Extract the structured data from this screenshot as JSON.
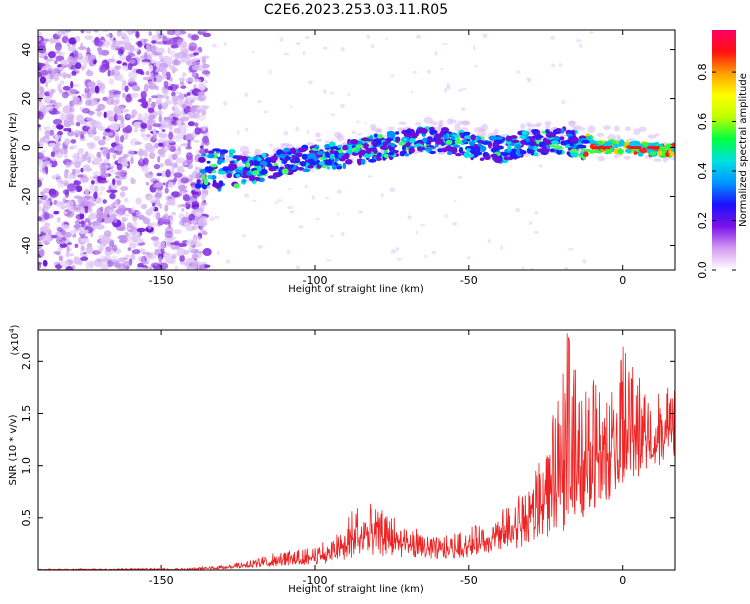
{
  "title": "C2E6.2023.253.03.11.R05",
  "chart_data": [
    {
      "type": "heatmap",
      "xlabel": "Height of straight line (km)",
      "ylabel": "Frequency (Hz)",
      "xlim": [
        -190,
        17
      ],
      "ylim": [
        -50,
        48
      ],
      "xticks": [
        -150,
        -100,
        -50,
        0
      ],
      "yticks": [
        -40,
        -20,
        0,
        20,
        40
      ],
      "colorbar": {
        "label": "Normalized spectral amplitude",
        "range": [
          0,
          0.97
        ],
        "ticks": [
          "0.0",
          "0.2",
          "0.4",
          "0.6",
          "0.8"
        ],
        "colors": [
          "#ffffff",
          "#d59bf2",
          "#7a12e8",
          "#1a10ff",
          "#0096ff",
          "#00e0e0",
          "#00ff40",
          "#bfff00",
          "#ffff00",
          "#ffa000",
          "#ff1010",
          "#ff0066"
        ]
      },
      "ridge": {
        "x": [
          -137,
          -130,
          -120,
          -110,
          -100,
          -90,
          -80,
          -70,
          -60,
          -50,
          -40,
          -30,
          -20,
          -10,
          0,
          10,
          17
        ],
        "frequency_hz": [
          -8,
          -9,
          -9,
          -6,
          -4,
          -3,
          0,
          2,
          3,
          1,
          -1,
          2,
          3,
          0,
          0,
          -1,
          -1
        ]
      }
    },
    {
      "type": "line",
      "xlabel": "Height of straight line (km)",
      "ylabel": "SNR (10 * v/v)",
      "y_multiplier": "(x10",
      "y_multiplier_exp": "4",
      "y_multiplier_close": ")",
      "xlim": [
        -190,
        17
      ],
      "ylim": [
        0,
        2.3
      ],
      "xticks": [
        -150,
        -100,
        -50,
        0
      ],
      "yticks": [
        0.5,
        1.0,
        1.5,
        2.0
      ],
      "color": "#ee2222",
      "envelope": {
        "x": [
          -190,
          -140,
          -130,
          -125,
          -120,
          -110,
          -100,
          -95,
          -90,
          -87,
          -80,
          -70,
          -60,
          -50,
          -40,
          -35,
          -30,
          -25,
          -20,
          -18,
          -15,
          -10,
          -5,
          0,
          5,
          10,
          17
        ],
        "baseline": [
          0.0,
          0.0,
          0.01,
          0.02,
          0.02,
          0.04,
          0.05,
          0.06,
          0.1,
          0.12,
          0.13,
          0.12,
          0.1,
          0.12,
          0.18,
          0.2,
          0.25,
          0.3,
          0.35,
          0.4,
          0.45,
          0.55,
          0.65,
          0.75,
          0.85,
          0.95,
          1.1
        ],
        "peak": [
          0.01,
          0.02,
          0.05,
          0.08,
          0.12,
          0.18,
          0.25,
          0.3,
          0.45,
          0.68,
          0.62,
          0.45,
          0.32,
          0.4,
          0.55,
          0.75,
          0.9,
          1.3,
          1.7,
          2.28,
          1.9,
          2.0,
          1.9,
          2.15,
          2.08,
          1.7,
          1.8
        ]
      }
    }
  ]
}
